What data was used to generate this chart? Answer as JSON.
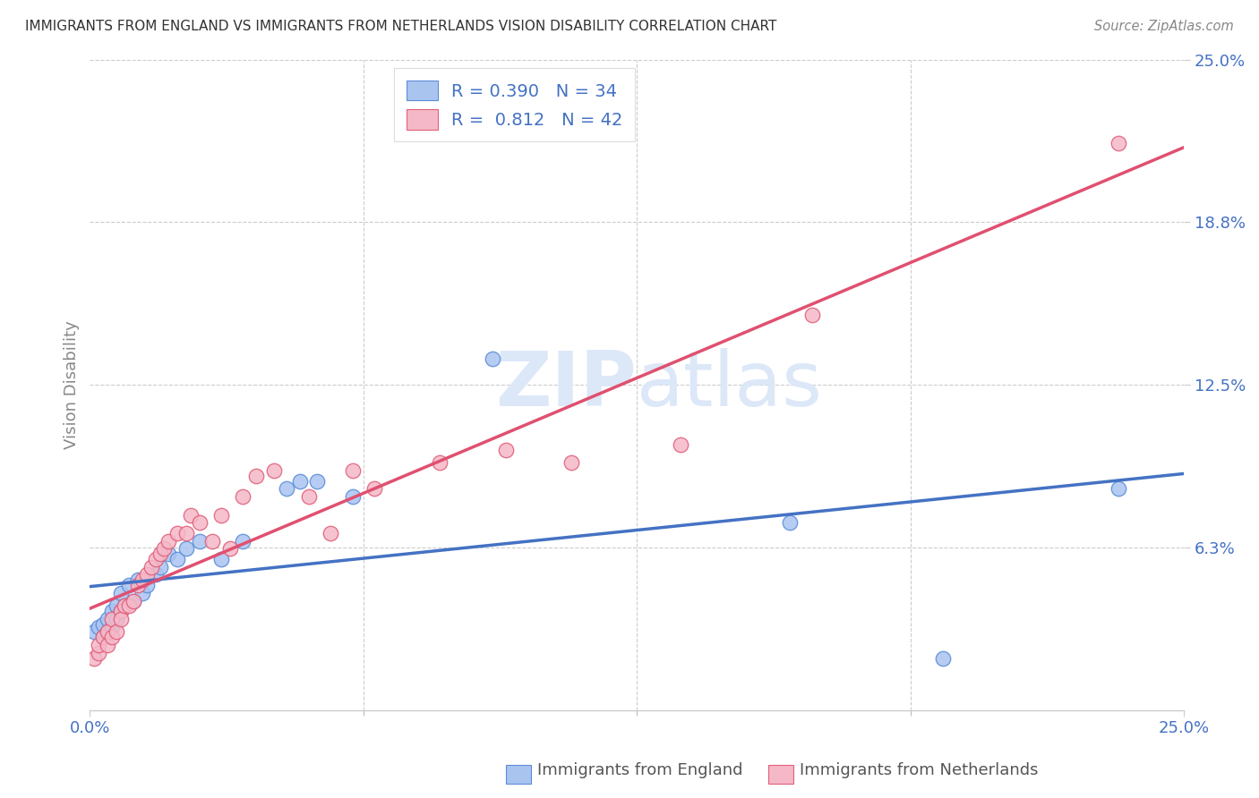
{
  "title": "IMMIGRANTS FROM ENGLAND VS IMMIGRANTS FROM NETHERLANDS VISION DISABILITY CORRELATION CHART",
  "source": "Source: ZipAtlas.com",
  "ylabel": "Vision Disability",
  "xlim": [
    0.0,
    0.25
  ],
  "ylim": [
    0.0,
    0.25
  ],
  "england_color": "#aac4f0",
  "england_edge_color": "#5b8dd9",
  "england_line_color": "#4472c4",
  "netherlands_color": "#f5b8c8",
  "netherlands_edge_color": "#e0607a",
  "netherlands_line_color": "#e05070",
  "england_R": 0.39,
  "england_N": 34,
  "netherlands_R": 0.812,
  "netherlands_N": 42,
  "background_color": "#ffffff",
  "tick_color": "#4472c4",
  "grid_color": "#cccccc",
  "title_color": "#333333",
  "ylabel_color": "#888888",
  "watermark_color": "#dce8f8",
  "ytick_vals": [
    0.0625,
    0.125,
    0.1875,
    0.25
  ],
  "ytick_labels": [
    "6.3%",
    "12.5%",
    "18.8%",
    "25.0%"
  ],
  "xtick_vals": [
    0.0,
    0.25
  ],
  "xtick_labels": [
    "0.0%",
    "25.0%"
  ],
  "england_x": [
    0.001,
    0.002,
    0.003,
    0.003,
    0.004,
    0.004,
    0.005,
    0.005,
    0.006,
    0.006,
    0.007,
    0.007,
    0.008,
    0.009,
    0.01,
    0.011,
    0.012,
    0.013,
    0.015,
    0.016,
    0.018,
    0.02,
    0.022,
    0.025,
    0.03,
    0.035,
    0.045,
    0.048,
    0.052,
    0.06,
    0.092,
    0.16,
    0.195,
    0.235
  ],
  "england_y": [
    0.03,
    0.032,
    0.028,
    0.033,
    0.03,
    0.035,
    0.032,
    0.038,
    0.035,
    0.04,
    0.038,
    0.045,
    0.04,
    0.048,
    0.042,
    0.05,
    0.045,
    0.048,
    0.052,
    0.055,
    0.06,
    0.058,
    0.062,
    0.065,
    0.058,
    0.065,
    0.085,
    0.088,
    0.088,
    0.082,
    0.135,
    0.072,
    0.02,
    0.085
  ],
  "netherlands_x": [
    0.001,
    0.002,
    0.002,
    0.003,
    0.004,
    0.004,
    0.005,
    0.005,
    0.006,
    0.007,
    0.007,
    0.008,
    0.009,
    0.01,
    0.011,
    0.012,
    0.013,
    0.014,
    0.015,
    0.016,
    0.017,
    0.018,
    0.02,
    0.022,
    0.023,
    0.025,
    0.028,
    0.03,
    0.032,
    0.035,
    0.038,
    0.042,
    0.05,
    0.055,
    0.06,
    0.065,
    0.08,
    0.095,
    0.11,
    0.135,
    0.165,
    0.235
  ],
  "netherlands_y": [
    0.02,
    0.022,
    0.025,
    0.028,
    0.025,
    0.03,
    0.028,
    0.035,
    0.03,
    0.038,
    0.035,
    0.04,
    0.04,
    0.042,
    0.048,
    0.05,
    0.052,
    0.055,
    0.058,
    0.06,
    0.062,
    0.065,
    0.068,
    0.068,
    0.075,
    0.072,
    0.065,
    0.075,
    0.062,
    0.082,
    0.09,
    0.092,
    0.082,
    0.068,
    0.092,
    0.085,
    0.095,
    0.1,
    0.095,
    0.102,
    0.152,
    0.218
  ]
}
